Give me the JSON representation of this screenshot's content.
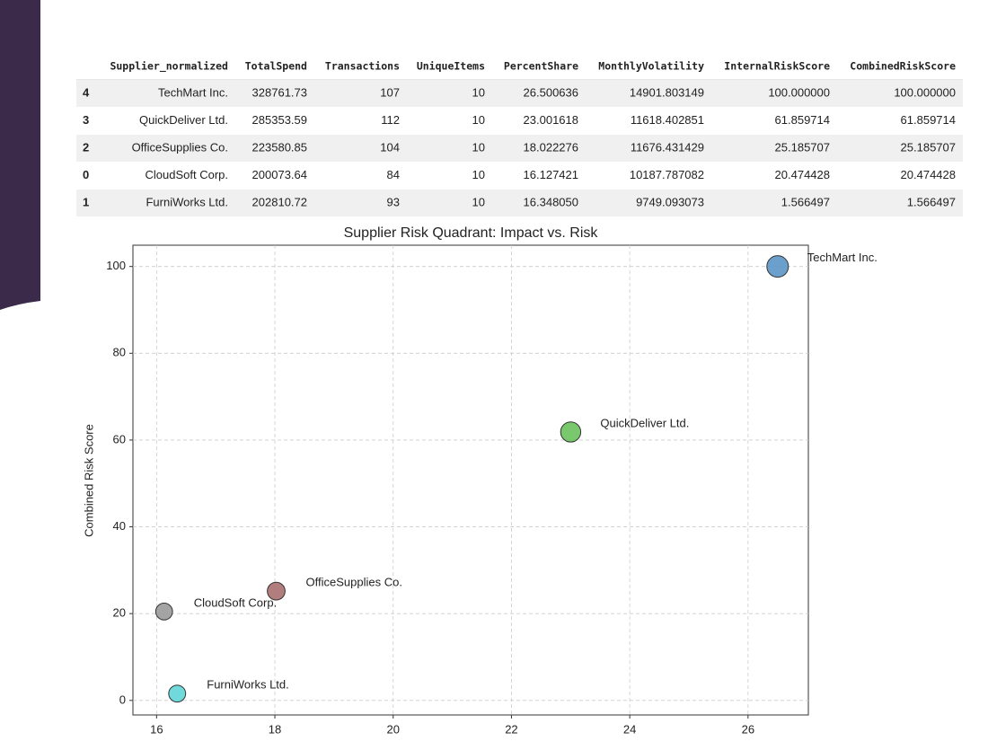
{
  "table": {
    "columns": [
      "Supplier_normalized",
      "TotalSpend",
      "Transactions",
      "UniqueItems",
      "PercentShare",
      "MonthlyVolatility",
      "InternalRiskScore",
      "CombinedRiskScore"
    ],
    "index": [
      "4",
      "3",
      "2",
      "0",
      "1"
    ],
    "rows": [
      [
        "TechMart Inc.",
        "328761.73",
        "107",
        "10",
        "26.500636",
        "14901.803149",
        "100.000000",
        "100.000000"
      ],
      [
        "QuickDeliver Ltd.",
        "285353.59",
        "112",
        "10",
        "23.001618",
        "11618.402851",
        "61.859714",
        "61.859714"
      ],
      [
        "OfficeSupplies Co.",
        "223580.85",
        "104",
        "10",
        "18.022276",
        "11676.431429",
        "25.185707",
        "25.185707"
      ],
      [
        "CloudSoft Corp.",
        "200073.64",
        "84",
        "10",
        "16.127421",
        "10187.787082",
        "20.474428",
        "20.474428"
      ],
      [
        "FurniWorks Ltd.",
        "202810.72",
        "93",
        "10",
        "16.348050",
        "9749.093073",
        "1.566497",
        "1.566497"
      ]
    ]
  },
  "chart_data": {
    "type": "scatter",
    "title": "Supplier Risk Quadrant: Impact vs. Risk",
    "y_label": "Combined Risk Score",
    "labels": [
      "TechMart Inc.",
      "QuickDeliver Ltd.",
      "OfficeSupplies Co.",
      "CloudSoft Corp.",
      "FurniWorks Ltd."
    ],
    "x": [
      26.500636,
      23.001618,
      18.022276,
      16.127421,
      16.34805
    ],
    "y": [
      100,
      61.859714,
      25.185707,
      20.474428,
      1.566497
    ],
    "sizes": [
      328761.73,
      285353.59,
      223580.85,
      200073.64,
      202810.72
    ],
    "colors": [
      "#5b96c8",
      "#6cc25e",
      "#a86f6f",
      "#9a9a9a",
      "#5fd5d8"
    ],
    "xlim": [
      15.6,
      27.02
    ],
    "ylim": [
      -3.35,
      104.9
    ],
    "xticks": [
      16,
      18,
      20,
      22,
      24,
      26
    ],
    "yticks": [
      0,
      20,
      40,
      60,
      80,
      100
    ],
    "grid": true
  }
}
